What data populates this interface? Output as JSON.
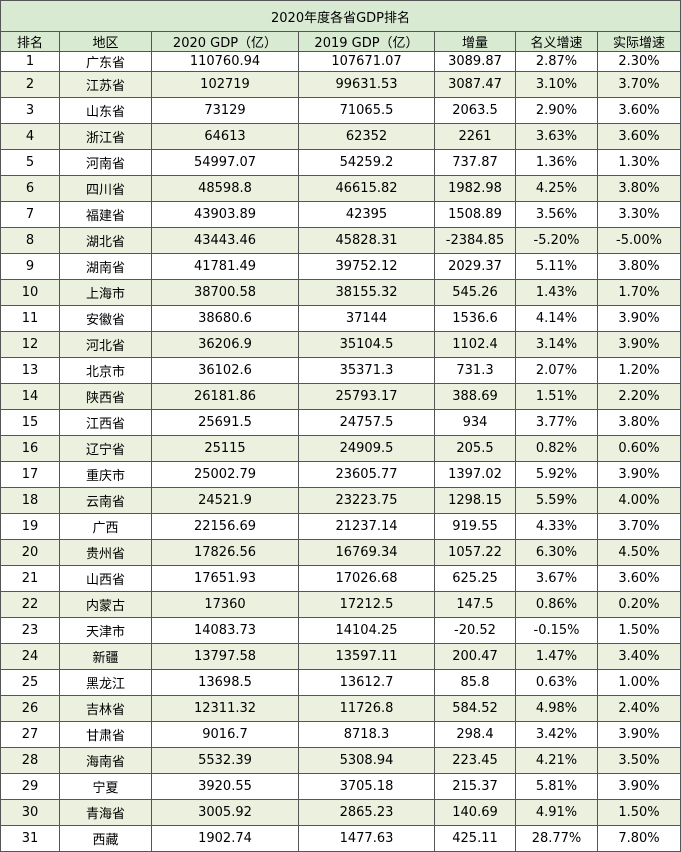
{
  "title": "2020年度各省GDP排名",
  "headers": [
    "排名",
    "地区",
    "2020 GDP（亿）",
    "2019 GDP（亿）",
    "增量",
    "名义增速",
    "实际增速"
  ],
  "rows": [
    [
      "1",
      "广东省",
      "110760.94",
      "107671.07",
      "3089.87",
      "2.87%",
      "2.30%"
    ],
    [
      "2",
      "江苏省",
      "102719",
      "99631.53",
      "3087.47",
      "3.10%",
      "3.70%"
    ],
    [
      "3",
      "山东省",
      "73129",
      "71065.5",
      "2063.5",
      "2.90%",
      "3.60%"
    ],
    [
      "4",
      "浙江省",
      "64613",
      "62352",
      "2261",
      "3.63%",
      "3.60%"
    ],
    [
      "5",
      "河南省",
      "54997.07",
      "54259.2",
      "737.87",
      "1.36%",
      "1.30%"
    ],
    [
      "6",
      "四川省",
      "48598.8",
      "46615.82",
      "1982.98",
      "4.25%",
      "3.80%"
    ],
    [
      "7",
      "福建省",
      "43903.89",
      "42395",
      "1508.89",
      "3.56%",
      "3.30%"
    ],
    [
      "8",
      "湖北省",
      "43443.46",
      "45828.31",
      "-2384.85",
      "-5.20%",
      "-5.00%"
    ],
    [
      "9",
      "湖南省",
      "41781.49",
      "39752.12",
      "2029.37",
      "5.11%",
      "3.80%"
    ],
    [
      "10",
      "上海市",
      "38700.58",
      "38155.32",
      "545.26",
      "1.43%",
      "1.70%"
    ],
    [
      "11",
      "安徽省",
      "38680.6",
      "37144",
      "1536.6",
      "4.14%",
      "3.90%"
    ],
    [
      "12",
      "河北省",
      "36206.9",
      "35104.5",
      "1102.4",
      "3.14%",
      "3.90%"
    ],
    [
      "13",
      "北京市",
      "36102.6",
      "35371.3",
      "731.3",
      "2.07%",
      "1.20%"
    ],
    [
      "14",
      "陕西省",
      "26181.86",
      "25793.17",
      "388.69",
      "1.51%",
      "2.20%"
    ],
    [
      "15",
      "江西省",
      "25691.5",
      "24757.5",
      "934",
      "3.77%",
      "3.80%"
    ],
    [
      "16",
      "辽宁省",
      "25115",
      "24909.5",
      "205.5",
      "0.82%",
      "0.60%"
    ],
    [
      "17",
      "重庆市",
      "25002.79",
      "23605.77",
      "1397.02",
      "5.92%",
      "3.90%"
    ],
    [
      "18",
      "云南省",
      "24521.9",
      "23223.75",
      "1298.15",
      "5.59%",
      "4.00%"
    ],
    [
      "19",
      "广西",
      "22156.69",
      "21237.14",
      "919.55",
      "4.33%",
      "3.70%"
    ],
    [
      "20",
      "贵州省",
      "17826.56",
      "16769.34",
      "1057.22",
      "6.30%",
      "4.50%"
    ],
    [
      "21",
      "山西省",
      "17651.93",
      "17026.68",
      "625.25",
      "3.67%",
      "3.60%"
    ],
    [
      "22",
      "内蒙古",
      "17360",
      "17212.5",
      "147.5",
      "0.86%",
      "0.20%"
    ],
    [
      "23",
      "天津市",
      "14083.73",
      "14104.25",
      "-20.52",
      "-0.15%",
      "1.50%"
    ],
    [
      "24",
      "新疆",
      "13797.58",
      "13597.11",
      "200.47",
      "1.47%",
      "3.40%"
    ],
    [
      "25",
      "黑龙江",
      "13698.5",
      "13612.7",
      "85.8",
      "0.63%",
      "1.00%"
    ],
    [
      "26",
      "吉林省",
      "12311.32",
      "11726.8",
      "584.52",
      "4.98%",
      "2.40%"
    ],
    [
      "27",
      "甘肃省",
      "9016.7",
      "8718.3",
      "298.4",
      "3.42%",
      "3.90%"
    ],
    [
      "28",
      "海南省",
      "5532.39",
      "5308.94",
      "223.45",
      "4.21%",
      "3.50%"
    ],
    [
      "29",
      "宁夏",
      "3920.55",
      "3705.18",
      "215.37",
      "5.81%",
      "3.90%"
    ],
    [
      "30",
      "青海省",
      "3005.92",
      "2865.23",
      "140.69",
      "4.91%",
      "1.50%"
    ],
    [
      "31",
      "西藏",
      "1902.74",
      "1477.63",
      "425.11",
      "28.77%",
      "7.80%"
    ]
  ],
  "colors": {
    "header_fill": "#d9ead3",
    "alt_row_fill": "#ebf1de",
    "grid": "#555555"
  }
}
